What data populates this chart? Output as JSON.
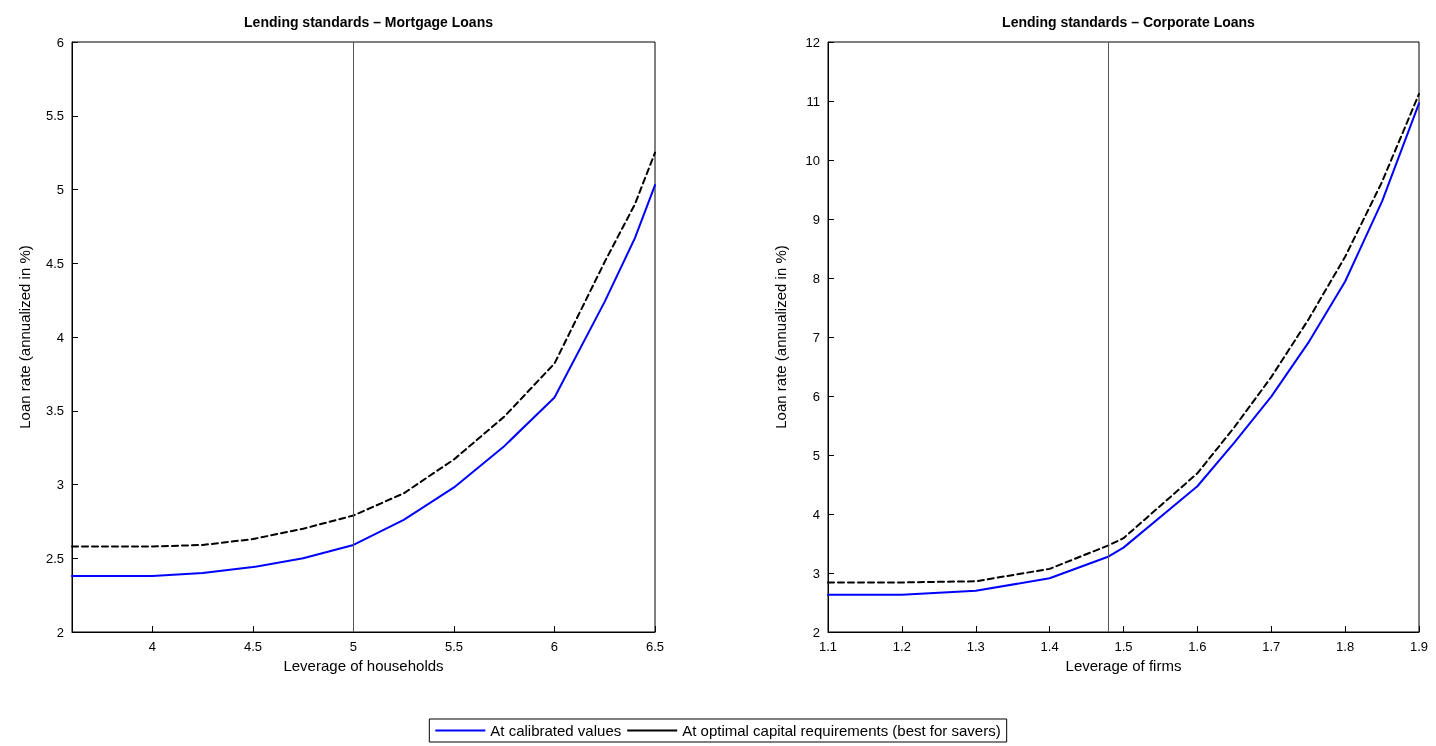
{
  "chart_data": [
    {
      "type": "line",
      "title": "Lending standards – Mortgage Loans",
      "xlabel": "Leverage of households",
      "ylabel": "Loan rate (annualized in %)",
      "xlim": [
        3.6,
        6.5
      ],
      "xticks": [
        4,
        4.5,
        5,
        5.5,
        6,
        6.5
      ],
      "ylim": [
        2,
        6
      ],
      "yticks": [
        2,
        2.5,
        3,
        3.5,
        4,
        4.5,
        5,
        5.5,
        6
      ],
      "grid": false,
      "legend": "bottom",
      "marker": "none",
      "ref_lines": [
        {
          "axis": "x",
          "value": 5,
          "color": "#555555"
        }
      ],
      "series": [
        {
          "name": "At calibrated values",
          "color": "#0000ff",
          "line_style": "solid",
          "x": [
            3.6,
            4,
            4.25,
            4.5,
            4.75,
            5,
            5.25,
            5.5,
            5.75,
            6,
            6.25,
            6.4,
            6.5
          ],
          "values": [
            2.38,
            2.38,
            2.4,
            2.44,
            2.5,
            2.59,
            2.76,
            2.98,
            3.26,
            3.59,
            4.24,
            4.67,
            5.03
          ]
        },
        {
          "name": "At optimal capital requirements (best for savers)",
          "color": "#000000",
          "line_style": "dashed",
          "x": [
            3.6,
            4,
            4.25,
            4.5,
            4.75,
            5,
            5.25,
            5.5,
            5.75,
            6,
            6.25,
            6.4,
            6.5
          ],
          "values": [
            2.58,
            2.58,
            2.59,
            2.63,
            2.7,
            2.79,
            2.94,
            3.17,
            3.46,
            3.82,
            4.51,
            4.9,
            5.25
          ]
        }
      ]
    },
    {
      "type": "line",
      "title": "Lending standards – Corporate Loans",
      "xlabel": "Leverage of firms",
      "ylabel": "Loan rate (annualized in %)",
      "xlim": [
        1.1,
        1.9
      ],
      "xticks": [
        1.1,
        1.2,
        1.3,
        1.4,
        1.5,
        1.6,
        1.7,
        1.8,
        1.9
      ],
      "ylim": [
        2,
        12
      ],
      "yticks": [
        2,
        3,
        4,
        5,
        6,
        7,
        8,
        9,
        10,
        11,
        12
      ],
      "grid": false,
      "marker": "none",
      "ref_lines": [
        {
          "axis": "x",
          "value": 1.48,
          "color": "#555555"
        }
      ],
      "series": [
        {
          "color": "#0000ff",
          "line_style": "solid",
          "x": [
            1.1,
            1.2,
            1.3,
            1.4,
            1.48,
            1.5,
            1.6,
            1.65,
            1.7,
            1.75,
            1.8,
            1.85,
            1.9
          ],
          "values": [
            2.63,
            2.63,
            2.7,
            2.91,
            3.28,
            3.43,
            4.47,
            5.21,
            5.99,
            6.9,
            7.94,
            9.3,
            10.96
          ]
        },
        {
          "color": "#000000",
          "line_style": "dashed",
          "x": [
            1.1,
            1.2,
            1.3,
            1.4,
            1.48,
            1.5,
            1.6,
            1.65,
            1.7,
            1.75,
            1.8,
            1.85,
            1.9
          ],
          "values": [
            2.84,
            2.84,
            2.86,
            3.07,
            3.47,
            3.59,
            4.69,
            5.47,
            6.32,
            7.29,
            8.36,
            9.63,
            11.12
          ]
        }
      ]
    }
  ]
}
